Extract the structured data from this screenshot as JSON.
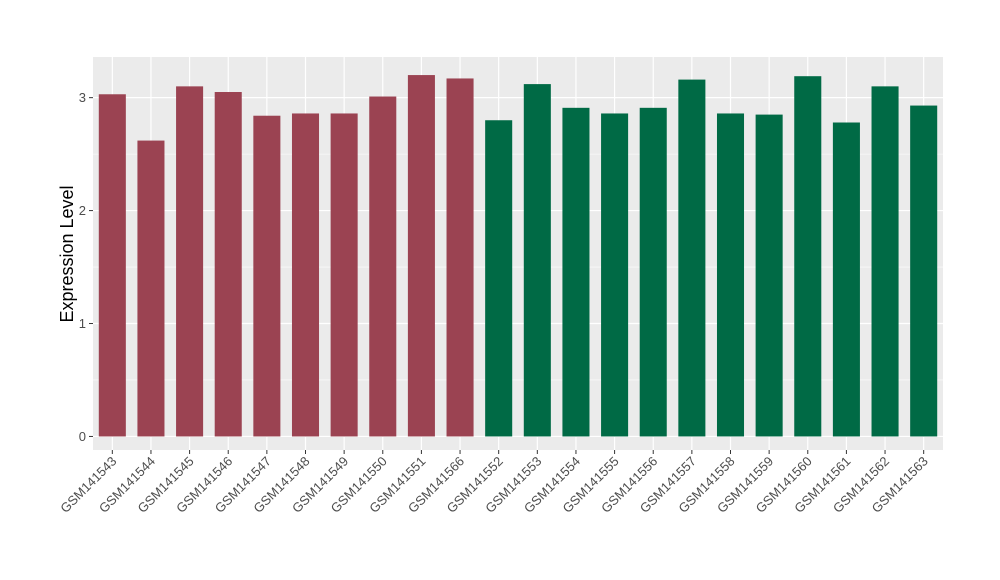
{
  "chart_data": {
    "type": "bar",
    "title": "",
    "xlabel": "",
    "ylabel": "Expression Level",
    "ylim": [
      -0.12,
      3.36
    ],
    "yticks": [
      0,
      1,
      2,
      3
    ],
    "grid": true,
    "legend": "none",
    "categories": [
      "GSM141543",
      "GSM141544",
      "GSM141545",
      "GSM141546",
      "GSM141547",
      "GSM141548",
      "GSM141549",
      "GSM141550",
      "GSM141551",
      "GSM141566",
      "GSM141552",
      "GSM141553",
      "GSM141554",
      "GSM141555",
      "GSM141556",
      "GSM141557",
      "GSM141558",
      "GSM141559",
      "GSM141560",
      "GSM141561",
      "GSM141562",
      "GSM141563"
    ],
    "values": [
      3.03,
      2.62,
      3.1,
      3.05,
      2.84,
      2.86,
      2.86,
      3.01,
      3.2,
      3.17,
      2.8,
      3.12,
      2.91,
      2.86,
      2.91,
      3.16,
      2.86,
      2.85,
      3.19,
      2.78,
      3.1,
      2.93
    ],
    "groups": [
      0,
      0,
      0,
      0,
      0,
      0,
      0,
      0,
      0,
      0,
      1,
      1,
      1,
      1,
      1,
      1,
      1,
      1,
      1,
      1,
      1,
      1
    ],
    "group_colors": [
      "#9b4352",
      "#006a45"
    ],
    "panel_color": "#ebebeb",
    "grid_color": "#ffffff"
  }
}
